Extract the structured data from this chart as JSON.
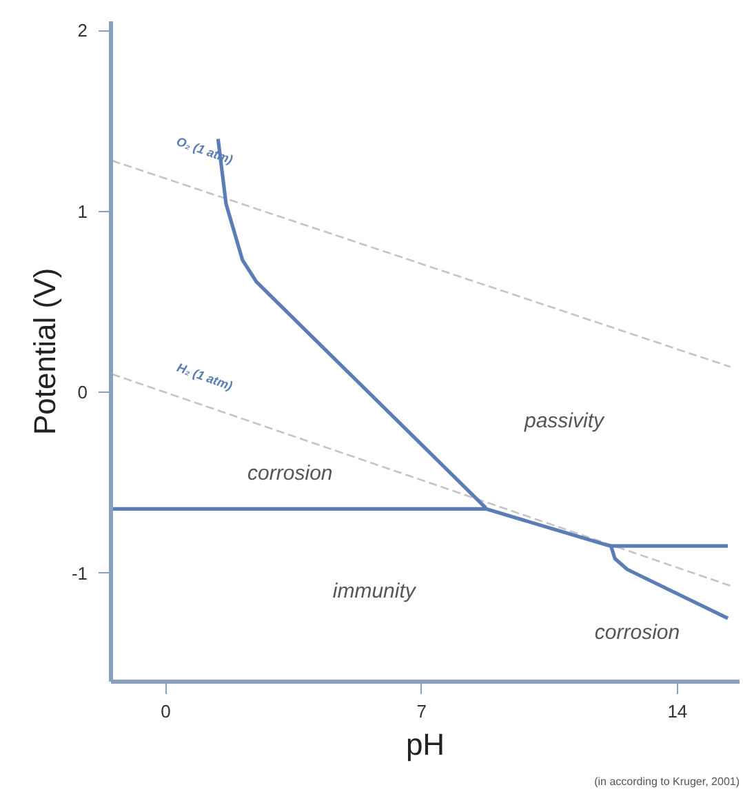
{
  "chart_data": {
    "type": "line",
    "xlabel": "pH",
    "ylabel": "Potential (V)",
    "xlim": [
      -1.5,
      15.7
    ],
    "ylim": [
      -1.6,
      2.05
    ],
    "xticks": [
      0,
      7,
      14
    ],
    "yticks": [
      2,
      1,
      0,
      -1
    ],
    "grid": false,
    "marker": "none",
    "series": [
      {
        "color": "#c4c4c4",
        "line_style": "dashed",
        "x": [
          -1.47,
          15.45
        ],
        "values": [
          1.28,
          0.14
        ]
      },
      {
        "color": "#c4c4c4",
        "line_style": "dashed",
        "x": [
          -1.47,
          15.45
        ],
        "values": [
          0.1,
          -1.07
        ]
      },
      {
        "color": "#5a7db5",
        "line_style": "solid",
        "x": [
          1.43,
          1.65,
          2.1,
          2.48,
          8.76
        ],
        "values": [
          1.4,
          1.04,
          0.73,
          0.61,
          -0.64
        ]
      },
      {
        "color": "#5a7db5",
        "line_style": "solid",
        "x": [
          -1.47,
          8.76,
          12.07,
          12.18,
          15.38
        ],
        "values": [
          -0.645,
          -0.645,
          -0.845,
          -0.85,
          -0.85
        ]
      },
      {
        "color": "#5a7db5",
        "line_style": "solid",
        "x": [
          12.18,
          12.29,
          12.63,
          15.38
        ],
        "values": [
          -0.85,
          -0.92,
          -0.98,
          -1.25
        ]
      }
    ],
    "annotations": [
      "O₂ (1 atm)",
      "H₂ (1 atm)",
      "passivity",
      "corrosion",
      "immunity",
      "corrosion",
      "(in according to Kruger, 2001)"
    ]
  }
}
